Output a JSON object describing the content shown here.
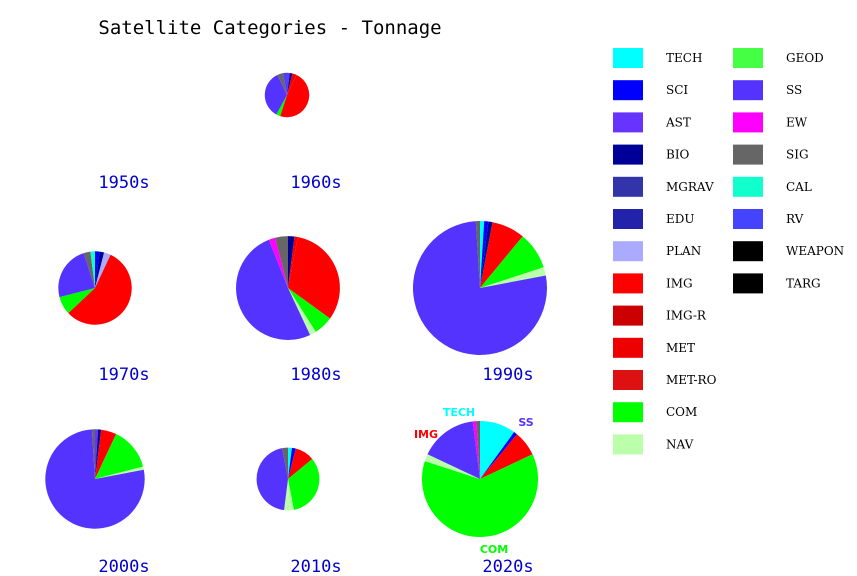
{
  "chart_data": {
    "type": "pie",
    "title": "Satellite Categories - Tonnage",
    "categories": [
      "TECH",
      "SCI",
      "AST",
      "BIO",
      "MGRAV",
      "EDU",
      "PLAN",
      "IMG",
      "IMG-R",
      "MET",
      "MET-RO",
      "COM",
      "NAV",
      "GEOD",
      "SS",
      "EW",
      "SIG",
      "CAL",
      "RV",
      "WEAPON",
      "TARG"
    ],
    "colors": {
      "TECH": "#00ffff",
      "SCI": "#0000ff",
      "AST": "#6633ff",
      "BIO": "#000099",
      "MGRAV": "#3333aa",
      "EDU": "#2222aa",
      "PLAN": "#aaaaff",
      "IMG": "#ff0000",
      "IMG-R": "#cc0000",
      "MET": "#ee0000",
      "MET-RO": "#dd1111",
      "COM": "#00ff00",
      "NAV": "#bbffaa",
      "GEOD": "#44ff44",
      "SS": "#5533ff",
      "EW": "#ff00ff",
      "SIG": "#666666",
      "CAL": "#11ffcc",
      "RV": "#4444ff",
      "WEAPON": "#000000",
      "TARG": "#000000"
    },
    "legend_placement": "right",
    "pies": [
      {
        "decade": "1950s",
        "total_scale": 0.0,
        "slices": []
      },
      {
        "decade": "1960s",
        "total_scale": 0.11,
        "slices": [
          {
            "category": "AST",
            "value": 2
          },
          {
            "category": "BIO",
            "value": 2
          },
          {
            "category": "MET",
            "value": 3
          },
          {
            "category": "IMG",
            "value": 48
          },
          {
            "category": "COM",
            "value": 3
          },
          {
            "category": "SS",
            "value": 35
          },
          {
            "category": "SIG",
            "value": 4
          },
          {
            "category": "RV",
            "value": 3
          }
        ]
      },
      {
        "decade": "1970s",
        "total_scale": 0.3,
        "slices": [
          {
            "category": "SCI",
            "value": 2
          },
          {
            "category": "BIO",
            "value": 2
          },
          {
            "category": "PLAN",
            "value": 3
          },
          {
            "category": "IMG",
            "value": 56
          },
          {
            "category": "COM",
            "value": 8
          },
          {
            "category": "SS",
            "value": 24
          },
          {
            "category": "SIG",
            "value": 3
          },
          {
            "category": "CAL",
            "value": 2
          }
        ]
      },
      {
        "decade": "1980s",
        "total_scale": 0.6,
        "slices": [
          {
            "category": "BIO",
            "value": 2
          },
          {
            "category": "MET",
            "value": 1
          },
          {
            "category": "IMG",
            "value": 32
          },
          {
            "category": "COM",
            "value": 6
          },
          {
            "category": "NAV",
            "value": 2
          },
          {
            "category": "SS",
            "value": 51
          },
          {
            "category": "EW",
            "value": 2
          },
          {
            "category": "SIG",
            "value": 4
          }
        ]
      },
      {
        "decade": "1990s",
        "total_scale": 1.0,
        "slices": [
          {
            "category": "TECH",
            "value": 1
          },
          {
            "category": "SCI",
            "value": 1
          },
          {
            "category": "BIO",
            "value": 1
          },
          {
            "category": "IMG",
            "value": 8
          },
          {
            "category": "COM",
            "value": 9
          },
          {
            "category": "NAV",
            "value": 2
          },
          {
            "category": "SS",
            "value": 77
          },
          {
            "category": "SIG",
            "value": 1
          }
        ]
      },
      {
        "decade": "2000s",
        "total_scale": 0.55,
        "slices": [
          {
            "category": "AST",
            "value": 1
          },
          {
            "category": "BIO",
            "value": 1
          },
          {
            "category": "IMG",
            "value": 5
          },
          {
            "category": "COM",
            "value": 14
          },
          {
            "category": "NAV",
            "value": 1
          },
          {
            "category": "SS",
            "value": 77
          },
          {
            "category": "SIG",
            "value": 1
          }
        ]
      },
      {
        "decade": "2010s",
        "total_scale": 0.22,
        "slices": [
          {
            "category": "TECH",
            "value": 2
          },
          {
            "category": "SCI",
            "value": 2
          },
          {
            "category": "IMG",
            "value": 10
          },
          {
            "category": "COM",
            "value": 33
          },
          {
            "category": "NAV",
            "value": 5
          },
          {
            "category": "SS",
            "value": 45
          },
          {
            "category": "SIG",
            "value": 3
          }
        ]
      },
      {
        "decade": "2020s",
        "total_scale": 0.75,
        "slices": [
          {
            "category": "TECH",
            "value": 10
          },
          {
            "category": "SCI",
            "value": 1
          },
          {
            "category": "IMG",
            "value": 7
          },
          {
            "category": "COM",
            "value": 62
          },
          {
            "category": "NAV",
            "value": 2
          },
          {
            "category": "SS",
            "value": 16
          },
          {
            "category": "EW",
            "value": 1
          },
          {
            "category": "SIG",
            "value": 1
          }
        ]
      }
    ],
    "annotations": {
      "decade": "2020s",
      "labels": [
        {
          "text": "TECH",
          "color": "#00ffff"
        },
        {
          "text": "SS",
          "color": "#5533ff"
        },
        {
          "text": "IMG",
          "color": "#ff0000"
        },
        {
          "text": "COM",
          "color": "#00ff00"
        }
      ]
    }
  }
}
